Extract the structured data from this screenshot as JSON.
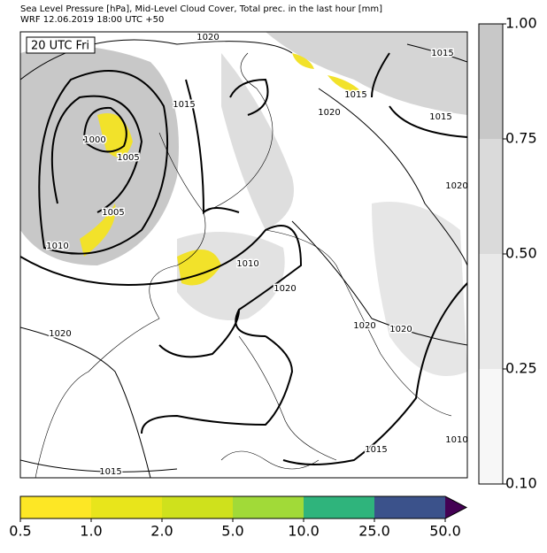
{
  "header": {
    "line1": "Sea Level Pressure [hPa], Mid-Level Cloud Cover, Total prec. in the last hour [mm]",
    "line2": "WRF 12.06.2019 18:00 UTC +50"
  },
  "map": {
    "time_label": "20 UTC Fri",
    "isobar_labels": [
      "1020",
      "1015",
      "1015",
      "1020",
      "1015",
      "1015",
      "1000",
      "1005",
      "1005",
      "1010",
      "1020",
      "1010",
      "1020",
      "1020",
      "1020",
      "1020",
      "1015",
      "1010",
      "1015"
    ]
  },
  "cloud_colorbar": {
    "ticks": [
      "0.10",
      "0.25",
      "0.50",
      "0.75",
      "1.00"
    ],
    "colors": [
      "#f7f7f7",
      "#e9e9e9",
      "#dadada",
      "#c8c8c8"
    ]
  },
  "precip_colorbar": {
    "ticks": [
      "0.5",
      "1.0",
      "2.0",
      "5.0",
      "10.0",
      "25.0",
      "50.0"
    ],
    "colors": [
      "#fde725",
      "#e8e51b",
      "#cfe11c",
      "#a1da38",
      "#2fb47c",
      "#3b528b"
    ],
    "extend_color": "#440154"
  }
}
